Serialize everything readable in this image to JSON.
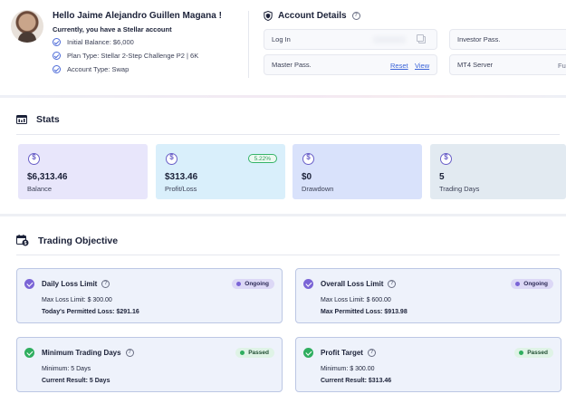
{
  "header": {
    "greeting": "Hello Jaime Alejandro Guillen Magana !",
    "subtitle": "Currently, you have a Stellar account",
    "details": [
      "Initial Balance: $6,000",
      "Plan Type: Stellar 2-Step Challenge P2 | 6K",
      "Account Type: Swap"
    ]
  },
  "account_details": {
    "title": "Account Details",
    "login_label": "Log In",
    "investor_label": "Investor Pass.",
    "master_label": "Master Pass.",
    "reset_label": "Reset",
    "view_label": "View",
    "mt4_label": "MT4 Server",
    "mt4_value": "Fu"
  },
  "stats": {
    "title": "Stats",
    "cards": [
      {
        "value": "$6,313.46",
        "label": "Balance",
        "color": "#e8e6fb",
        "icon": "dollar-icon"
      },
      {
        "value": "$313.46",
        "label": "Profit/Loss",
        "color": "#d9effb",
        "icon": "dollar-icon",
        "badge": "5.22%"
      },
      {
        "value": "$0",
        "label": "Drawdown",
        "color": "#d9e2fb",
        "icon": "dollar-icon"
      },
      {
        "value": "5",
        "label": "Trading Days",
        "color": "#e2eaf1",
        "icon": "dollar-icon"
      }
    ]
  },
  "objectives": {
    "title": "Trading Objective",
    "items": [
      {
        "title": "Daily Loss Limit",
        "status": "Ongoing",
        "line1": "Max Loss Limit: $ 300.00",
        "line2": "Today's Permitted Loss: $291.16",
        "icon_color": "#7a64d6"
      },
      {
        "title": "Overall Loss Limit",
        "status": "Ongoing",
        "line1": "Max Loss Limit: $ 600.00",
        "line2": "Max Permitted Loss: $913.98",
        "icon_color": "#7a64d6"
      },
      {
        "title": "Minimum Trading Days",
        "status": "Passed",
        "line1": "Minimum: 5 Days",
        "line2": "Current Result: 5 Days",
        "icon_color": "#2fae5f"
      },
      {
        "title": "Profit Target",
        "status": "Passed",
        "line1": "Minimum: $ 300.00",
        "line2": "Current Result: $313.46",
        "icon_color": "#2fae5f"
      }
    ]
  }
}
